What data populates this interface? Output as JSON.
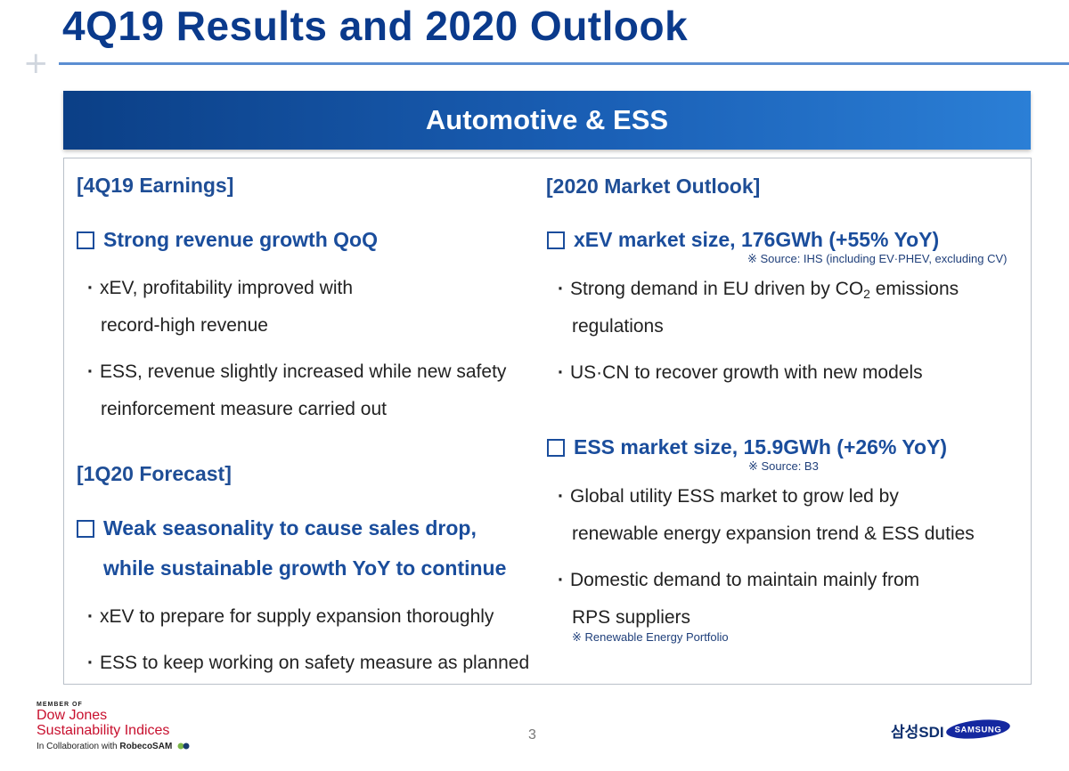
{
  "header": {
    "title": "4Q19 Results and 2020 Outlook"
  },
  "banner": {
    "title": "Automotive & ESS"
  },
  "left": {
    "earnings_heading": "[4Q19 Earnings]",
    "earnings_headline": "Strong revenue growth QoQ",
    "earnings_bullets": [
      {
        "line1": "xEV, profitability improved with",
        "line2": "record-high revenue"
      },
      {
        "line1": "ESS, revenue slightly increased while new safety",
        "line2": "reinforcement measure carried out"
      }
    ],
    "forecast_heading": "[1Q20 Forecast]",
    "forecast_headline_line1": "Weak seasonality to cause sales drop,",
    "forecast_headline_line2": "while sustainable growth YoY to continue",
    "forecast_bullets": [
      "xEV to prepare for supply expansion thoroughly",
      "ESS to keep working on safety measure as planned"
    ]
  },
  "right": {
    "outlook_heading": "[2020 Market Outlook]",
    "xev_headline": "xEV market size, 176GWh (+55% YoY)",
    "xev_note": "※ Source: IHS (including EV·PHEV, excluding CV)",
    "xev_bullets": [
      {
        "line1_pre": "Strong demand in EU driven by CO",
        "sub": "2",
        "line1_post": " emissions",
        "line2": "regulations"
      },
      {
        "line1": "US·CN to recover growth with new models"
      }
    ],
    "ess_headline": "ESS market size, 15.9GWh (+26% YoY)",
    "ess_note": "※ Source: B3",
    "ess_bullets": [
      {
        "line1": "Global utility ESS market to grow led by",
        "line2": "renewable energy expansion trend & ESS duties"
      },
      {
        "line1": "Domestic demand to maintain mainly from",
        "line2": "RPS suppliers"
      }
    ],
    "rps_note": "※ Renewable Energy Portfolio"
  },
  "footer": {
    "dj_member": "MEMBER OF",
    "dj_name": "Dow Jones",
    "dj_indices": "Sustainability Indices",
    "dj_collab_pre": "In Collaboration with ",
    "dj_collab_brand": "RobecoSAM",
    "page_number": "3",
    "sdi_logo": "삼성SDI",
    "samsung_logo": "SAMSUNG"
  },
  "colors": {
    "title_blue": "#0a3a8c",
    "heading_blue": "#1a4d9c",
    "dj_red": "#c8102e",
    "samsung_blue": "#1428a0"
  }
}
